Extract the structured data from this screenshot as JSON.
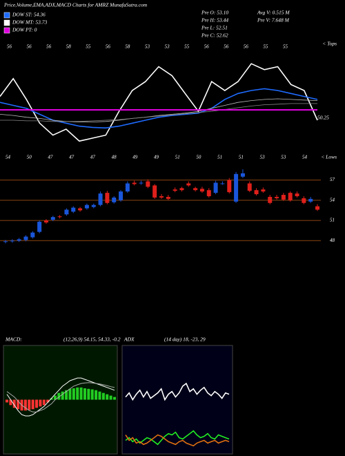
{
  "header": {
    "title": "Price,Volume,EMA,ADX,MACD Charts for AMRZ MunafaSutra.com",
    "legend": [
      {
        "label": "DOW ST: 54.36",
        "color": "#1e6bff"
      },
      {
        "label": "DOW MT: 53.73",
        "color": "#ffffff"
      },
      {
        "label": "DOW PT: 0",
        "color": "#e000e0"
      }
    ],
    "prev": [
      "Pre O: 53.10",
      "Pre H: 53.44",
      "Pre L: 52.51",
      "Pre C: 52.62"
    ],
    "volume": [
      "Avg V: 0.515 M",
      "Pre V: 7.648 M"
    ]
  },
  "chart_data": [
    {
      "type": "candlestick",
      "open": [
        47.9,
        47.9,
        48.0,
        48.1,
        48.5,
        49.3,
        51.0,
        51.1,
        51.6,
        51.9,
        52.3,
        52.8,
        52.8,
        53.0,
        53.3,
        55.1,
        53.7,
        54.0,
        55.3,
        56.6,
        56.5,
        56.8,
        56.2,
        54.6,
        54.5,
        55.6,
        55.8,
        56.5,
        55.8,
        55.7,
        55.5,
        55.1,
        56.5,
        57.0,
        53.8,
        57.5,
        56.5,
        55.5,
        55.6,
        54.5,
        54.5,
        54.8,
        55.1,
        55.0,
        54.3,
        53.8,
        53.1
      ],
      "high": [
        48.1,
        48.2,
        48.4,
        48.8,
        49.4,
        51.0,
        51.2,
        51.7,
        51.8,
        52.8,
        53.1,
        53.0,
        53.5,
        53.5,
        55.3,
        55.4,
        54.6,
        55.5,
        56.8,
        56.9,
        56.9,
        57.1,
        56.4,
        54.9,
        54.8,
        55.9,
        56.0,
        56.8,
        56.0,
        56.0,
        55.8,
        56.9,
        56.8,
        57.3,
        58.2,
        58.6,
        56.8,
        55.8,
        55.9,
        54.8,
        54.8,
        55.1,
        55.3,
        55.3,
        54.6,
        54.5,
        53.4
      ],
      "low": [
        47.6,
        47.7,
        47.8,
        47.9,
        48.3,
        49.1,
        50.5,
        50.9,
        51.3,
        51.7,
        52.1,
        52.3,
        52.6,
        52.8,
        53.1,
        53.4,
        53.5,
        53.8,
        55.1,
        56.2,
        56.3,
        55.8,
        54.2,
        54.2,
        54.0,
        55.2,
        55.3,
        56.0,
        55.3,
        55.1,
        54.4,
        54.9,
        56.3,
        55.0,
        53.6,
        57.3,
        55.2,
        54.7,
        55.1,
        53.4,
        54.1,
        53.9,
        53.8,
        54.4,
        53.4,
        53.6,
        52.4
      ],
      "close": [
        47.9,
        48.0,
        48.2,
        48.6,
        49.2,
        50.8,
        50.7,
        51.5,
        51.5,
        52.6,
        52.9,
        52.5,
        53.3,
        53.3,
        55.0,
        53.6,
        54.4,
        55.3,
        56.5,
        56.4,
        56.6,
        56.0,
        54.4,
        54.4,
        54.2,
        55.4,
        55.5,
        56.2,
        55.5,
        55.3,
        54.6,
        56.6,
        56.5,
        55.2,
        57.9,
        58.0,
        55.4,
        54.9,
        55.3,
        53.6,
        54.3,
        54.1,
        54.0,
        54.6,
        53.6,
        54.2,
        52.6
      ],
      "up_color": "#1a56db",
      "down_color": "#e0201b",
      "grid_color": "#8b4513",
      "ylim": [
        46.8,
        58.6
      ],
      "yticks": [
        57,
        54,
        51,
        48
      ],
      "top_labels": [
        "56",
        "56",
        "56",
        "58",
        "55",
        "56",
        "58",
        "53",
        "53",
        "55",
        "56",
        "56",
        "56",
        "55",
        "55"
      ],
      "tops_label": "< Tops",
      "low_labels": [
        "54",
        "50",
        "47",
        "47",
        "47",
        "48",
        "49",
        "49",
        "51",
        "50",
        "51",
        "51",
        "53",
        "53",
        "54"
      ],
      "lows_label": "< Lows",
      "overlay": {
        "ylim": [
          42,
          60
        ],
        "series": [
          {
            "color": "#ffffff",
            "values": [
              52.5,
              55.5,
              52,
              48,
              46,
              47,
              45,
              45.5,
              46,
              50,
              53.5,
              55,
              57.5,
              56,
              53,
              50,
              55,
              53.5,
              55,
              58,
              57,
              57.5,
              54.5,
              53.5,
              48.5
            ]
          },
          {
            "color": "#1e6bff",
            "values": [
              51.5,
              51,
              50.5,
              49.5,
              48.5,
              48,
              47.5,
              47.3,
              47.2,
              47.5,
              48,
              48.5,
              49,
              49.3,
              49.5,
              49.7,
              50.5,
              52,
              53,
              53.5,
              53.8,
              53.5,
              53,
              52.5,
              52
            ]
          },
          {
            "color": "#bbbbbb",
            "values": [
              49.5,
              49.3,
              49,
              48.8,
              48.5,
              48.3,
              48.2,
              48.2,
              48.3,
              48.5,
              48.8,
              49,
              49.3,
              49.5,
              49.7,
              50,
              50.5,
              51,
              51.5,
              51.8,
              52,
              52.1,
              52,
              51.9,
              51.8
            ]
          },
          {
            "color": "#888888",
            "values": [
              48.5,
              48.5,
              48.4,
              48.4,
              48.3,
              48.3,
              48.3,
              48.4,
              48.5,
              48.6,
              48.8,
              49,
              49.2,
              49.4,
              49.6,
              49.8,
              50,
              50.3,
              50.6,
              50.9,
              51.1,
              51.2,
              51.3,
              51.3,
              51.3
            ]
          }
        ],
        "level": {
          "value": 50.25,
          "color": "#e000e0"
        }
      }
    },
    {
      "type": "macd",
      "label": "MACD:",
      "params": "(12,26,9) 54.15, 54.33, -0.2",
      "ylim": [
        -2,
        2
      ],
      "series": [
        {
          "color": "#ffffff",
          "values": [
            0.2,
            0,
            -0.2,
            -0.4,
            -0.55,
            -0.6,
            -0.6,
            -0.55,
            -0.45,
            -0.35,
            -0.25,
            -0.1,
            0.05,
            0.2,
            0.35,
            0.5,
            0.6,
            0.7,
            0.75,
            0.8,
            0.8,
            0.75,
            0.7,
            0.65,
            0.6,
            0.55,
            0.5,
            0.45,
            0.4,
            0.35
          ]
        },
        {
          "color": "#aaaaaa",
          "values": [
            0.3,
            0.2,
            0.1,
            -0.05,
            -0.2,
            -0.3,
            -0.4,
            -0.45,
            -0.45,
            -0.4,
            -0.35,
            -0.25,
            -0.15,
            0,
            0.1,
            0.2,
            0.3,
            0.4,
            0.5,
            0.55,
            0.6,
            0.62,
            0.63,
            0.62,
            0.6,
            0.58,
            0.55,
            0.52,
            0.48,
            0.45
          ]
        }
      ],
      "histogram": {
        "up_color": "#22cc22",
        "down_color": "#ff3333",
        "values": [
          -0.1,
          -0.2,
          -0.3,
          -0.35,
          -0.4,
          -0.4,
          -0.38,
          -0.35,
          -0.3,
          -0.25,
          -0.2,
          -0.1,
          0.05,
          0.15,
          0.25,
          0.3,
          0.35,
          0.4,
          0.42,
          0.45,
          0.45,
          0.42,
          0.4,
          0.38,
          0.35,
          0.3,
          0.25,
          0.2,
          0.15,
          0.1
        ]
      }
    },
    {
      "type": "adx",
      "label": "ADX",
      "params": "(14 day) 18, -23, 29",
      "ylim": [
        0,
        80
      ],
      "series": [
        {
          "color": "#ffffff",
          "values": [
            42,
            45,
            40,
            44,
            47,
            42,
            46,
            41,
            43,
            45,
            48,
            40,
            44,
            46,
            42,
            45,
            50,
            52,
            46,
            48,
            44,
            47,
            49,
            45,
            43,
            46,
            44,
            41,
            45,
            44
          ]
        },
        {
          "color": "#22ee22",
          "values": [
            10,
            12,
            9,
            11,
            8,
            10,
            12,
            11,
            9,
            7,
            10,
            13,
            15,
            14,
            16,
            12,
            11,
            13,
            15,
            17,
            14,
            12,
            13,
            15,
            12,
            11,
            14,
            13,
            12,
            11
          ]
        },
        {
          "color": "#e07010",
          "values": [
            14,
            10,
            12,
            8,
            9,
            7,
            8,
            10,
            12,
            14,
            13,
            11,
            9,
            8,
            7,
            9,
            10,
            8,
            7,
            6,
            8,
            9,
            10,
            8,
            9,
            10,
            8,
            9,
            10,
            9
          ]
        }
      ]
    }
  ]
}
